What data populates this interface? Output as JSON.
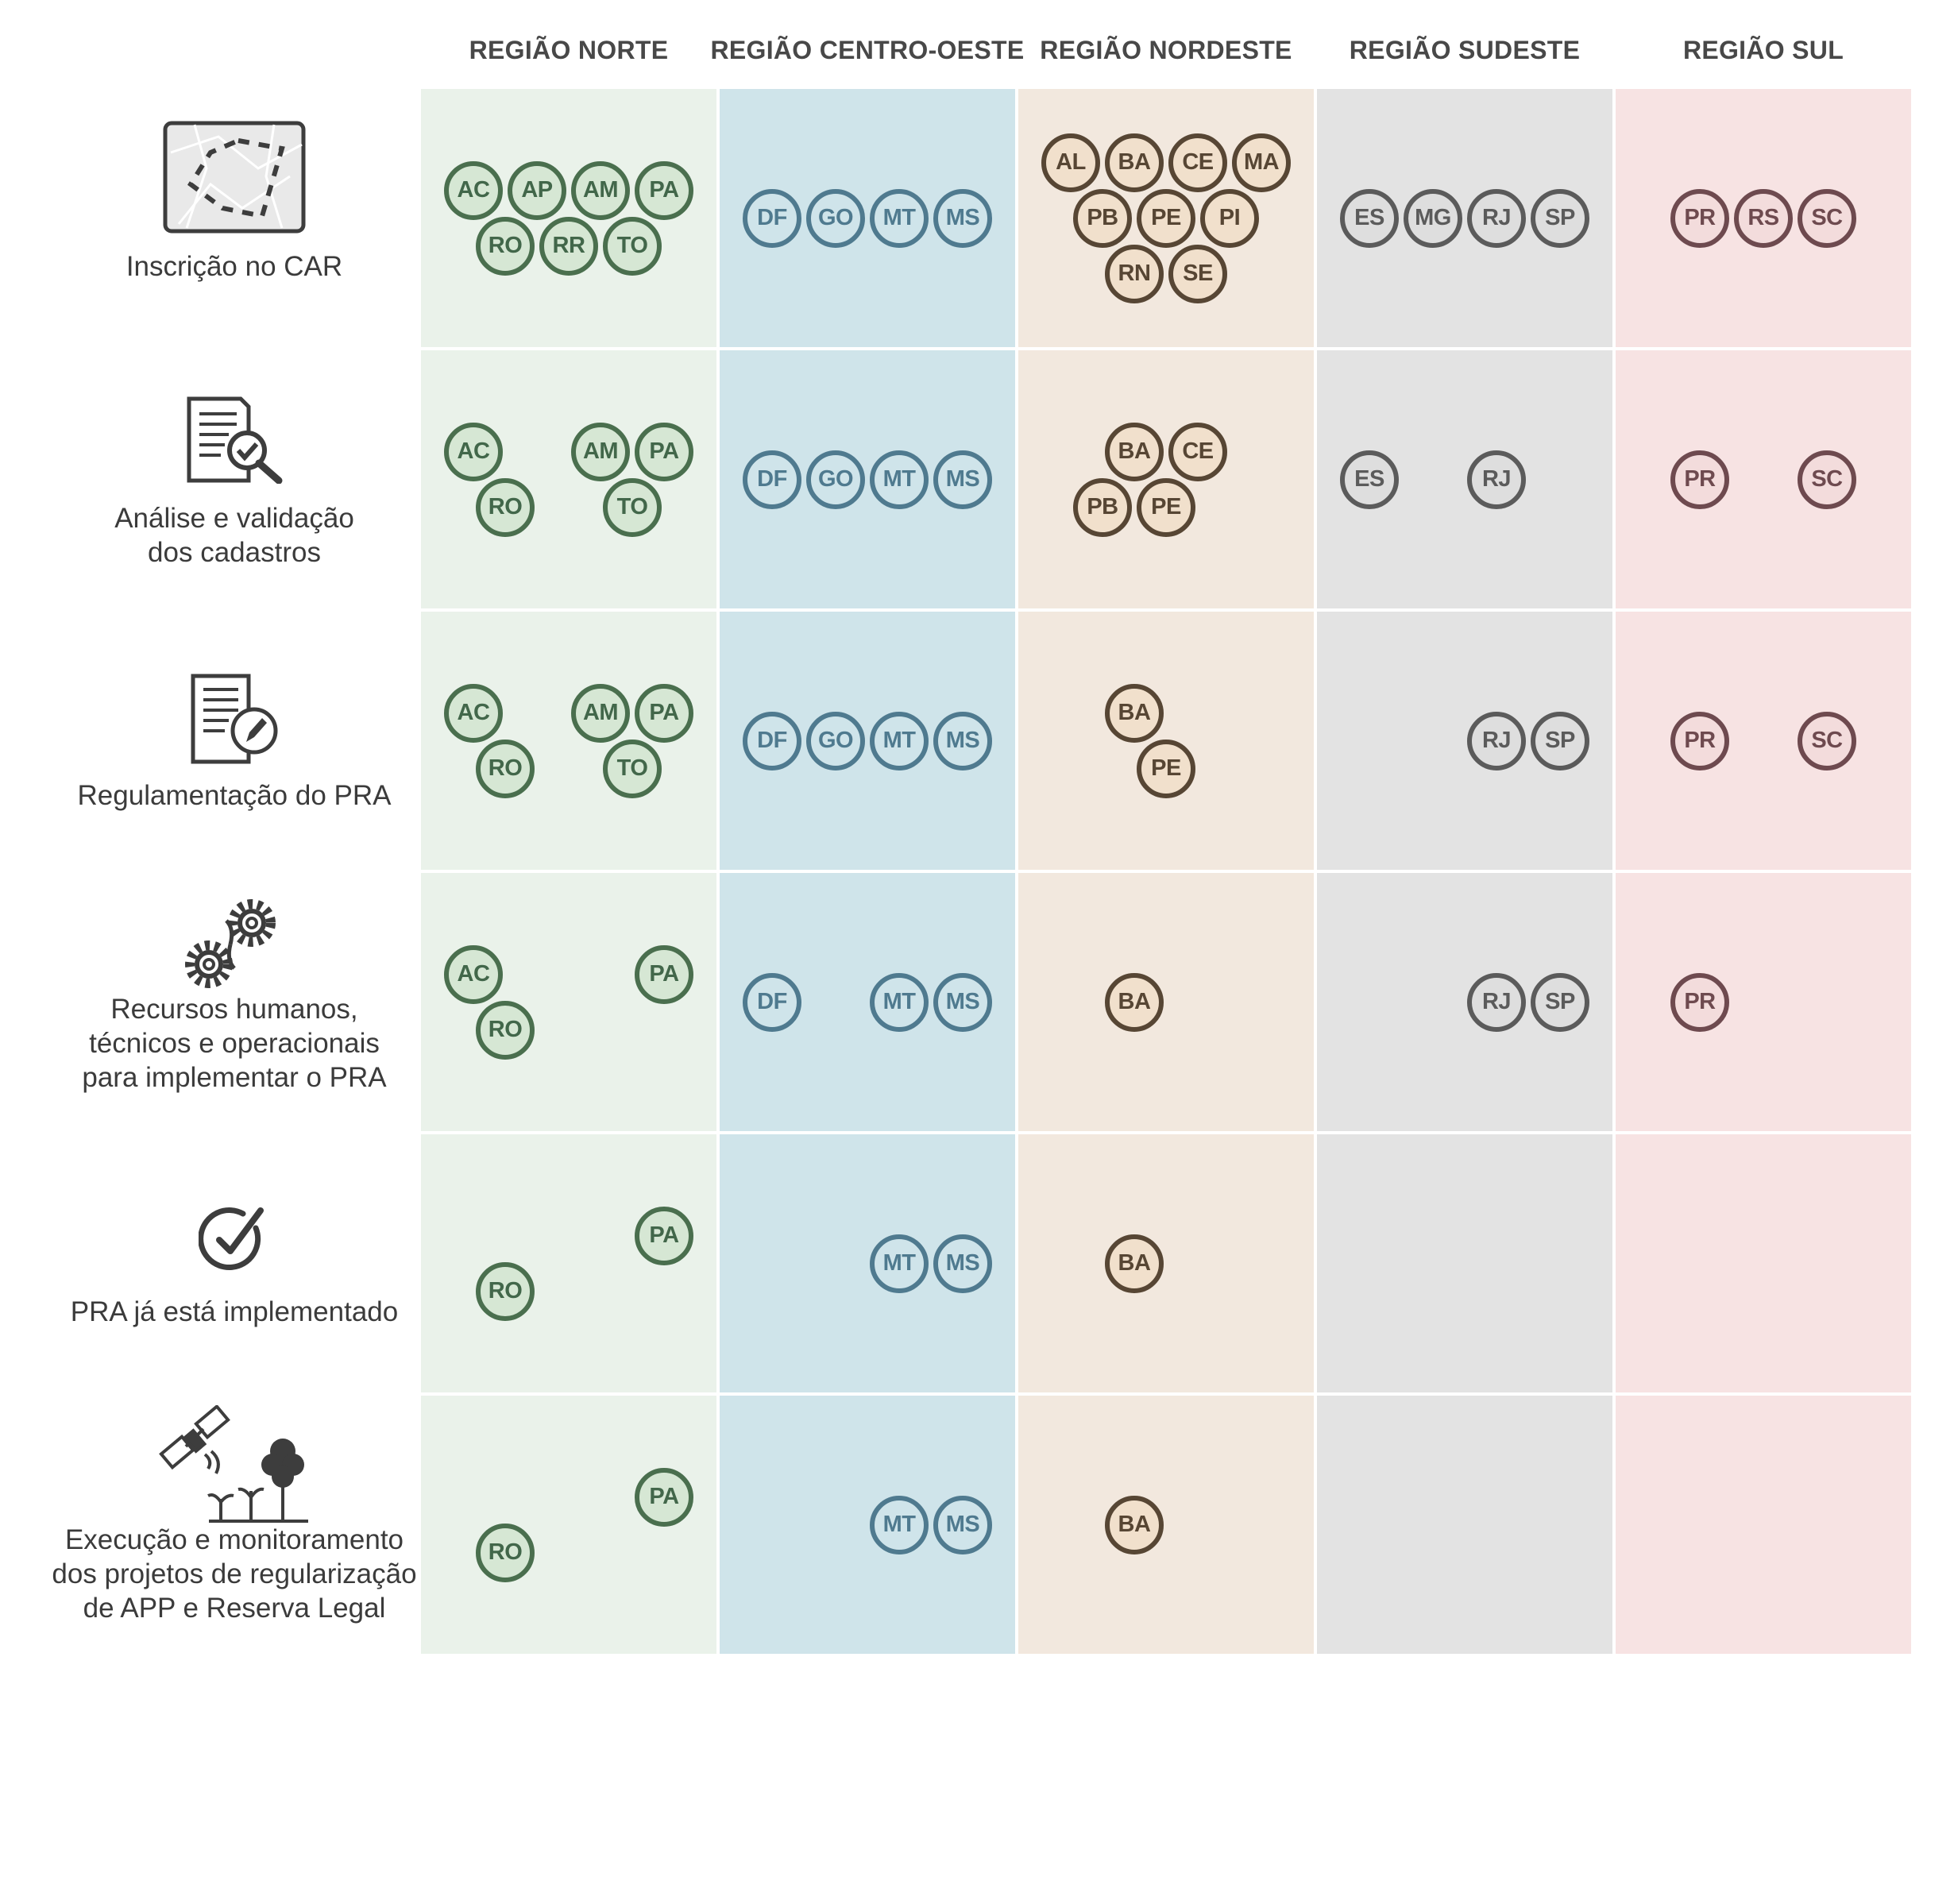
{
  "regions": [
    {
      "key": "norte",
      "label": "REGIÃO NORTE",
      "bg": "#eaf2ea",
      "badge_fill": "#d6e7d4",
      "badge_border": "#4a6f4e",
      "badge_text": "#42674a"
    },
    {
      "key": "centro_oeste",
      "label": "REGIÃO CENTRO-OESTE",
      "bg": "#cfe4ea",
      "badge_fill": "#cfe4ea",
      "badge_border": "#4f7a8f",
      "badge_text": "#4f7a8f"
    },
    {
      "key": "nordeste",
      "label": "REGIÃO NORDESTE",
      "bg": "#f2e8de",
      "badge_fill": "#f1e0cc",
      "badge_border": "#574634",
      "badge_text": "#574634"
    },
    {
      "key": "sudeste",
      "label": "REGIÃO SUDESTE",
      "bg": "#e3e3e3",
      "badge_fill": "#dedede",
      "badge_border": "#5b5b5b",
      "badge_text": "#5b5b5b"
    },
    {
      "key": "sul",
      "label": "REGIÃO SUL",
      "bg": "#f7e3e3",
      "badge_fill": "#f3dcdc",
      "badge_border": "#6e4a4f",
      "badge_text": "#6e4a4f"
    }
  ],
  "rows": [
    {
      "label": "Inscrição no CAR",
      "icon": "map-icon",
      "states": {
        "norte": [
          [
            "AC",
            "AP",
            "AM",
            "PA"
          ],
          [
            "RO",
            "RR",
            "TO"
          ]
        ],
        "centro_oeste": [
          [
            "DF",
            "GO",
            "MT",
            "MS"
          ]
        ],
        "nordeste": [
          [
            "AL",
            "BA",
            "CE",
            "MA"
          ],
          [
            "PB",
            "PE",
            "PI"
          ],
          [
            "RN",
            "SE"
          ]
        ],
        "sudeste": [
          [
            "ES",
            "MG",
            "RJ",
            "SP"
          ]
        ],
        "sul": [
          [
            "PR",
            "RS",
            "SC"
          ]
        ]
      }
    },
    {
      "label": "Análise e validação\ndos cadastros",
      "icon": "document-check-icon",
      "states": {
        "norte": [
          [
            "AC",
            "",
            "AM",
            "PA"
          ],
          [
            "RO",
            "",
            "TO"
          ]
        ],
        "centro_oeste": [
          [
            "DF",
            "GO",
            "MT",
            "MS"
          ]
        ],
        "nordeste": [
          [
            "",
            "BA",
            "CE",
            ""
          ],
          [
            "PB",
            "PE",
            ""
          ]
        ],
        "sudeste": [
          [
            "ES",
            "",
            "RJ",
            ""
          ]
        ],
        "sul": [
          [
            "PR",
            "",
            "SC"
          ]
        ]
      }
    },
    {
      "label": "Regulamentação do PRA",
      "icon": "document-pen-icon",
      "states": {
        "norte": [
          [
            "AC",
            "",
            "AM",
            "PA"
          ],
          [
            "RO",
            "",
            "TO"
          ]
        ],
        "centro_oeste": [
          [
            "DF",
            "GO",
            "MT",
            "MS"
          ]
        ],
        "nordeste": [
          [
            "",
            "BA",
            "",
            ""
          ],
          [
            "",
            "PE",
            ""
          ]
        ],
        "sudeste": [
          [
            "",
            "",
            "RJ",
            "SP"
          ]
        ],
        "sul": [
          [
            "PR",
            "",
            "SC"
          ]
        ]
      }
    },
    {
      "label": "Recursos humanos,\ntécnicos e operacionais\npara implementar o PRA",
      "icon": "gears-icon",
      "states": {
        "norte": [
          [
            "AC",
            "",
            "",
            "PA"
          ],
          [
            "RO",
            "",
            ""
          ]
        ],
        "centro_oeste": [
          [
            "DF",
            "",
            "MT",
            "MS"
          ]
        ],
        "nordeste": [
          [
            "",
            "BA",
            "",
            ""
          ]
        ],
        "sudeste": [
          [
            "",
            "",
            "RJ",
            "SP"
          ]
        ],
        "sul": [
          [
            "PR",
            "",
            ""
          ]
        ]
      }
    },
    {
      "label": "PRA já está implementado",
      "icon": "check-circle-icon",
      "states": {
        "norte": [
          [
            "",
            "",
            "",
            "PA"
          ],
          [
            "RO",
            "",
            ""
          ]
        ],
        "centro_oeste": [
          [
            "",
            "",
            "MT",
            "MS"
          ]
        ],
        "nordeste": [
          [
            "",
            "BA",
            "",
            ""
          ]
        ],
        "sudeste": [],
        "sul": []
      }
    },
    {
      "label": "Execução e monitoramento\ndos projetos de regularização\nde APP e Reserva Legal",
      "icon": "satellite-plants-icon",
      "states": {
        "norte": [
          [
            "",
            "",
            "",
            "PA"
          ],
          [
            "RO",
            "",
            ""
          ]
        ],
        "centro_oeste": [
          [
            "",
            "",
            "MT",
            "MS"
          ]
        ],
        "nordeste": [
          [
            "",
            "BA",
            "",
            ""
          ]
        ],
        "sudeste": [],
        "sul": []
      }
    }
  ]
}
